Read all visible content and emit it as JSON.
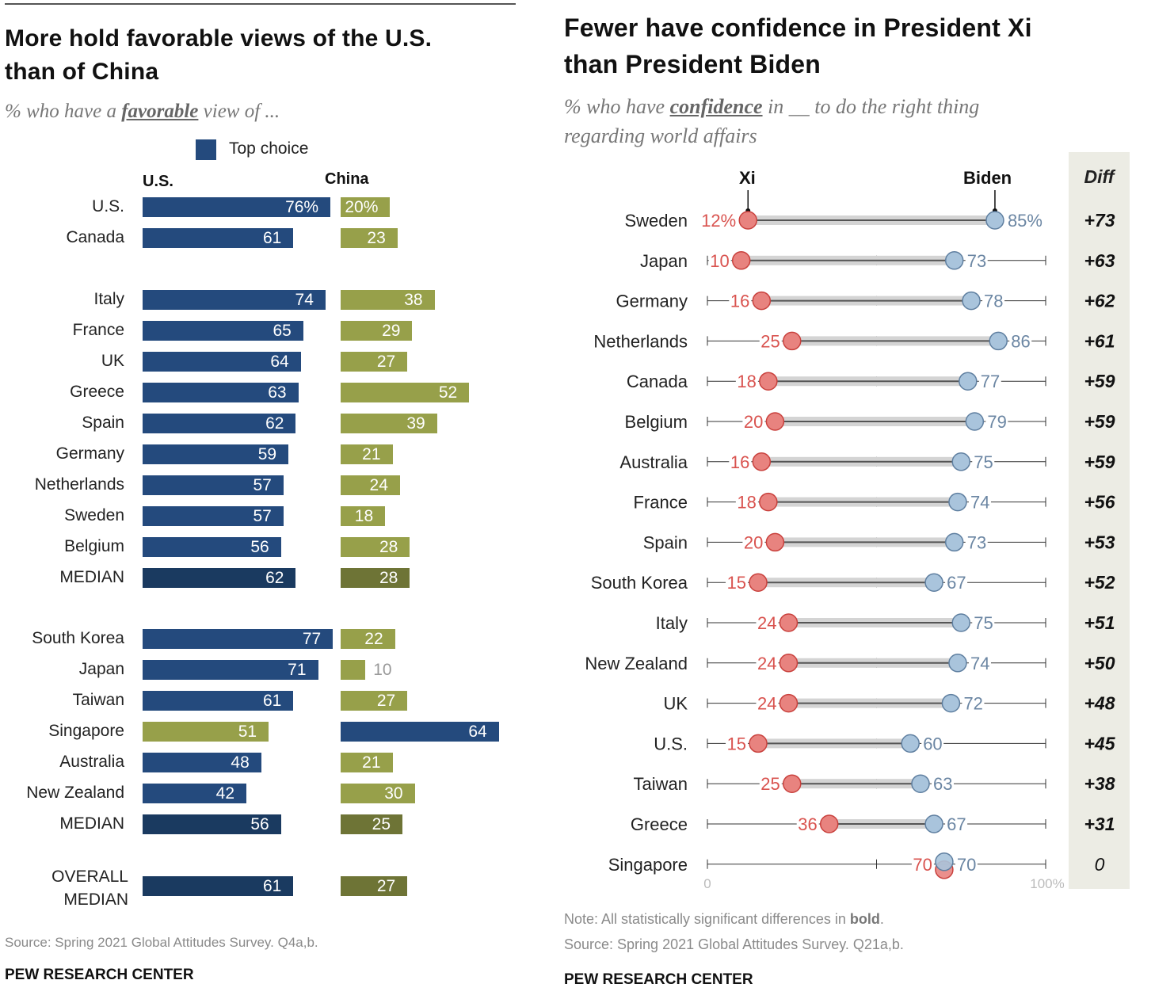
{
  "left": {
    "title_line1": "More hold favorable views of the U.S.",
    "title_line2": "than of China",
    "subtitle_pre": "% who have a ",
    "subtitle_em": "favorable",
    "subtitle_post": " view of ...",
    "legend_label": "Top choice",
    "col_us": "U.S.",
    "col_china": "China",
    "source": "Source: Spring 2021 Global Attitudes Survey. Q4a,b.",
    "org": "PEW RESEARCH CENTER",
    "colors": {
      "us": "#244a7d",
      "china": "#97a04a",
      "us_median": "#1a3a60",
      "china_median": "#6e7436",
      "top_choice": "#244a7d"
    }
  },
  "right": {
    "title_line1": "Fewer have confidence in President Xi",
    "title_line2": "than President Biden",
    "subtitle_pre": "% who have ",
    "subtitle_em": "confidence",
    "subtitle_post": " in __ to do the right thing",
    "subtitle_line2": "regarding world affairs",
    "col_xi": "Xi",
    "col_biden": "Biden",
    "col_diff": "Diff",
    "axis_min_label": "0",
    "axis_max_label": "100%",
    "note_pre": "Note: All statistically significant differences in ",
    "note_bold": "bold",
    "note_post": ".",
    "source": "Source: Spring 2021 Global Attitudes Survey. Q21a,b.",
    "org": "PEW RESEARCH CENTER",
    "colors": {
      "xi": "#e8837f",
      "xi_text": "#d9534f",
      "biden": "#a9c4dc",
      "biden_text": "#6b86a3",
      "diff_bg": "#ececE4"
    }
  },
  "chart_data": [
    {
      "type": "bar",
      "title": "More hold favorable views of the U.S. than of China",
      "subtitle": "% who have a favorable view of ...",
      "legend": [
        "Top choice"
      ],
      "series_names": [
        "U.S.",
        "China"
      ],
      "groups": [
        {
          "rows": [
            {
              "label": "U.S.",
              "us": 76,
              "china": 20,
              "us_label": "76%",
              "china_label": "20%",
              "top": "us"
            },
            {
              "label": "Canada",
              "us": 61,
              "china": 23,
              "top": "us"
            }
          ]
        },
        {
          "rows": [
            {
              "label": "Italy",
              "us": 74,
              "china": 38,
              "top": "us"
            },
            {
              "label": "France",
              "us": 65,
              "china": 29,
              "top": "us"
            },
            {
              "label": "UK",
              "us": 64,
              "china": 27,
              "top": "us"
            },
            {
              "label": "Greece",
              "us": 63,
              "china": 52,
              "top": "us"
            },
            {
              "label": "Spain",
              "us": 62,
              "china": 39,
              "top": "us"
            },
            {
              "label": "Germany",
              "us": 59,
              "china": 21,
              "top": "us"
            },
            {
              "label": "Netherlands",
              "us": 57,
              "china": 24,
              "top": "us"
            },
            {
              "label": "Sweden",
              "us": 57,
              "china": 18,
              "top": "us"
            },
            {
              "label": "Belgium",
              "us": 56,
              "china": 28,
              "top": "us"
            },
            {
              "label": "MEDIAN",
              "us": 62,
              "china": 28,
              "top": "us",
              "median": true
            }
          ]
        },
        {
          "rows": [
            {
              "label": "South Korea",
              "us": 77,
              "china": 22,
              "top": "us"
            },
            {
              "label": "Japan",
              "us": 71,
              "china": 10,
              "top": "us"
            },
            {
              "label": "Taiwan",
              "us": 61,
              "china": 27,
              "top": "us"
            },
            {
              "label": "Singapore",
              "us": 51,
              "china": 64,
              "top": "china"
            },
            {
              "label": "Australia",
              "us": 48,
              "china": 21,
              "top": "us"
            },
            {
              "label": "New Zealand",
              "us": 42,
              "china": 30,
              "top": "us"
            },
            {
              "label": "MEDIAN",
              "us": 56,
              "china": 25,
              "top": "us",
              "median": true
            }
          ]
        },
        {
          "rows": [
            {
              "label": "OVERALL MEDIAN",
              "label_line1": "OVERALL",
              "label_line2": "MEDIAN",
              "us": 61,
              "china": 27,
              "top": "us",
              "median": true
            }
          ]
        }
      ],
      "xlim": [
        0,
        100
      ]
    },
    {
      "type": "scatter",
      "subtype": "dot-plot",
      "title": "Fewer have confidence in President Xi than President Biden",
      "subtitle": "% who have confidence in __ to do the right thing regarding world affairs",
      "series_names": [
        "Xi",
        "Biden"
      ],
      "xlim": [
        0,
        100
      ],
      "xticks": [
        0,
        50,
        100
      ],
      "xtick_labels": [
        "0",
        "100%"
      ],
      "rows": [
        {
          "country": "Sweden",
          "xi": 12,
          "biden": 85,
          "xi_label": "12%",
          "biden_label": "85%",
          "diff": "+73",
          "significant": true
        },
        {
          "country": "Japan",
          "xi": 10,
          "biden": 73,
          "diff": "+63",
          "significant": true
        },
        {
          "country": "Germany",
          "xi": 16,
          "biden": 78,
          "diff": "+62",
          "significant": true
        },
        {
          "country": "Netherlands",
          "xi": 25,
          "biden": 86,
          "diff": "+61",
          "significant": true
        },
        {
          "country": "Canada",
          "xi": 18,
          "biden": 77,
          "diff": "+59",
          "significant": true
        },
        {
          "country": "Belgium",
          "xi": 20,
          "biden": 79,
          "diff": "+59",
          "significant": true
        },
        {
          "country": "Australia",
          "xi": 16,
          "biden": 75,
          "diff": "+59",
          "significant": true
        },
        {
          "country": "France",
          "xi": 18,
          "biden": 74,
          "diff": "+56",
          "significant": true
        },
        {
          "country": "Spain",
          "xi": 20,
          "biden": 73,
          "diff": "+53",
          "significant": true
        },
        {
          "country": "South Korea",
          "xi": 15,
          "biden": 67,
          "diff": "+52",
          "significant": true
        },
        {
          "country": "Italy",
          "xi": 24,
          "biden": 75,
          "diff": "+51",
          "significant": true
        },
        {
          "country": "New Zealand",
          "xi": 24,
          "biden": 74,
          "diff": "+50",
          "significant": true
        },
        {
          "country": "UK",
          "xi": 24,
          "biden": 72,
          "diff": "+48",
          "significant": true
        },
        {
          "country": "U.S.",
          "xi": 15,
          "biden": 60,
          "diff": "+45",
          "significant": true
        },
        {
          "country": "Taiwan",
          "xi": 25,
          "biden": 63,
          "diff": "+38",
          "significant": true
        },
        {
          "country": "Greece",
          "xi": 36,
          "biden": 67,
          "diff": "+31",
          "significant": true
        },
        {
          "country": "Singapore",
          "xi": 70,
          "biden": 70,
          "diff": "0",
          "significant": false
        }
      ]
    }
  ]
}
